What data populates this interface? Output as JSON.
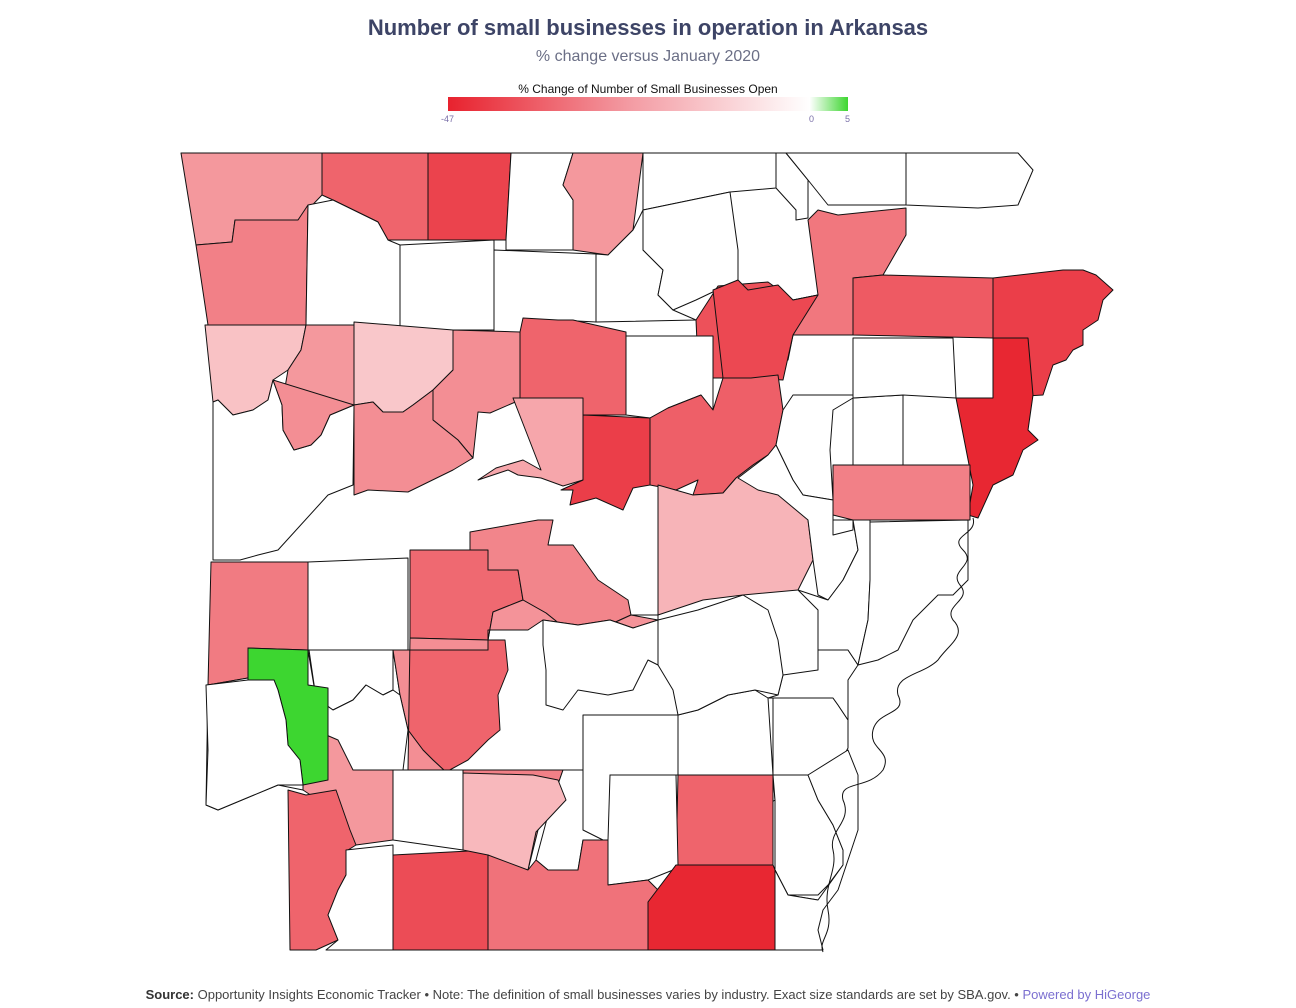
{
  "title": "Number of small businesses in operation in Arkansas",
  "subtitle": "% change versus January 2020",
  "legend": {
    "title": "% Change of Number of Small Businesses Open",
    "min_label": "-47",
    "zero_label": "0",
    "max_label": "5",
    "colors": {
      "negative": "#e8222e",
      "neutral": "#ffffff",
      "positive": "#3dd630"
    }
  },
  "footer": {
    "source_label": "Source:",
    "text": "Opportunity Insights Economic Tracker • Note: The definition of small businesses varies by industry. Exact size standards are set by SBA.gov. •",
    "brand": "Powered by HiGeorge"
  },
  "chart_data": {
    "type": "heatmap",
    "region": "Arkansas counties",
    "value_range": [
      -47,
      5
    ],
    "counties": [
      {
        "id": "c1",
        "value": -22
      },
      {
        "id": "c2",
        "value": -33
      },
      {
        "id": "c3",
        "value": -40
      },
      {
        "id": "c4",
        "value": null
      },
      {
        "id": "c5",
        "value": -22
      },
      {
        "id": "c6",
        "value": null
      },
      {
        "id": "c7",
        "value": null
      },
      {
        "id": "c8",
        "value": null
      },
      {
        "id": "c9",
        "value": null
      },
      {
        "id": "c10",
        "value": -27
      },
      {
        "id": "c11",
        "value": null
      },
      {
        "id": "c12",
        "value": null
      },
      {
        "id": "c13",
        "value": null
      },
      {
        "id": "c14",
        "value": null
      },
      {
        "id": "c15",
        "value": null
      },
      {
        "id": "c16",
        "value": -37
      },
      {
        "id": "c17",
        "value": -29
      },
      {
        "id": "c18",
        "value": -41
      },
      {
        "id": "c19",
        "value": -13
      },
      {
        "id": "c20",
        "value": -22
      },
      {
        "id": "c21",
        "value": -12
      },
      {
        "id": "c22",
        "value": -24
      },
      {
        "id": "c23",
        "value": -33
      },
      {
        "id": "c24",
        "value": null
      },
      {
        "id": "c25",
        "value": -39
      },
      {
        "id": "c26",
        "value": -35
      },
      {
        "id": "c27",
        "value": -19
      },
      {
        "id": "c28",
        "value": -41
      },
      {
        "id": "c29",
        "value": -34
      },
      {
        "id": "c30",
        "value": null
      },
      {
        "id": "c31",
        "value": null
      },
      {
        "id": "c32",
        "value": -46
      },
      {
        "id": "c33",
        "value": null
      },
      {
        "id": "c34",
        "value": -27
      },
      {
        "id": "c35",
        "value": null
      },
      {
        "id": "c36",
        "value": -24
      },
      {
        "id": "c37",
        "value": -28
      },
      {
        "id": "c38",
        "value": null
      },
      {
        "id": "c39",
        "value": -32
      },
      {
        "id": "c40",
        "value": -26
      },
      {
        "id": "c41",
        "value": -16
      },
      {
        "id": "c42",
        "value": null
      },
      {
        "id": "c43",
        "value": -23
      },
      {
        "id": "c44",
        "value": null
      },
      {
        "id": "c45",
        "value": -33
      },
      {
        "id": "c46",
        "value": -24
      },
      {
        "id": "c47",
        "value": null
      },
      {
        "id": "c48",
        "value": null
      },
      {
        "id": "c49",
        "value": -22
      },
      {
        "id": "c50",
        "value": null
      },
      {
        "id": "c51",
        "value": -33
      },
      {
        "id": "c52",
        "value": 5
      },
      {
        "id": "c53",
        "value": null
      },
      {
        "id": "c54",
        "value": -38
      },
      {
        "id": "c55",
        "value": null
      },
      {
        "id": "c56",
        "value": -27
      },
      {
        "id": "c57",
        "value": null
      },
      {
        "id": "c58",
        "value": null
      },
      {
        "id": "c59",
        "value": null
      },
      {
        "id": "c60",
        "value": -15
      },
      {
        "id": "c61",
        "value": null
      },
      {
        "id": "c62",
        "value": null
      },
      {
        "id": "c63",
        "value": -33
      },
      {
        "id": "c64",
        "value": null
      },
      {
        "id": "c65",
        "value": -30
      },
      {
        "id": "c66",
        "value": -39
      },
      {
        "id": "c67",
        "value": -27
      },
      {
        "id": "c68",
        "value": -46
      },
      {
        "id": "c69",
        "value": null
      },
      {
        "id": "c70",
        "value": null
      },
      {
        "id": "c71",
        "value": null
      },
      {
        "id": "c72",
        "value": null
      },
      {
        "id": "c73",
        "value": null
      },
      {
        "id": "c74",
        "value": null
      },
      {
        "id": "c75",
        "value": null
      }
    ]
  }
}
